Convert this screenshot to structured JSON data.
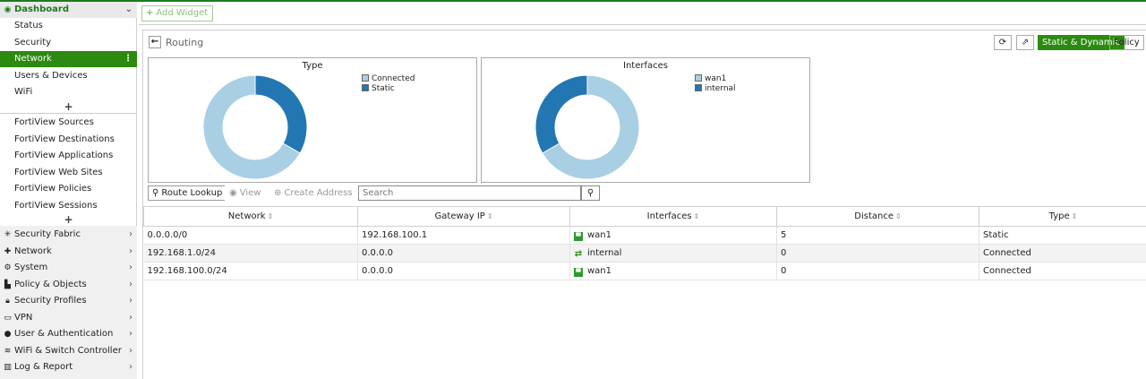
{
  "sidebar": {
    "dashboard": {
      "label": "Dashboard",
      "subitems": [
        "Status",
        "Security",
        "Network",
        "Users & Devices",
        "WiFi"
      ]
    },
    "fortiview": [
      "FortiView Sources",
      "FortiView Destinations",
      "FortiView Applications",
      "FortiView Web Sites",
      "FortiView Policies",
      "FortiView Sessions"
    ],
    "menu": [
      "Security Fabric",
      "Network",
      "System",
      "Policy & Objects",
      "Security Profiles",
      "VPN",
      "User & Authentication",
      "WiFi & Switch Controller",
      "Log & Report"
    ]
  },
  "toolbar": {
    "add_widget": "Add Widget"
  },
  "panel": {
    "title": "Routing",
    "segment_on": "Static & Dynamic",
    "segment_off": "Policy"
  },
  "charts": {
    "type": {
      "title": "Type",
      "legend": [
        "Connected",
        "Static"
      ]
    },
    "interfaces": {
      "title": "Interfaces",
      "legend": [
        "wan1",
        "internal"
      ]
    }
  },
  "chart_data": [
    {
      "type": "pie",
      "title": "Type",
      "categories": [
        "Connected",
        "Static"
      ],
      "values": [
        2,
        1
      ],
      "colors": [
        "#a8cfe3",
        "#2277b3"
      ],
      "donut": true
    },
    {
      "type": "pie",
      "title": "Interfaces",
      "categories": [
        "wan1",
        "internal"
      ],
      "values": [
        2,
        1
      ],
      "colors": [
        "#a8cfe3",
        "#2277b3"
      ],
      "donut": true
    }
  ],
  "actions": {
    "route_lookup": "Route Lookup",
    "view": "View",
    "create_address": "Create Address",
    "search_placeholder": "Search"
  },
  "table": {
    "headers": [
      "Network",
      "Gateway IP",
      "Interfaces",
      "Distance",
      "Type"
    ],
    "rows": [
      {
        "network": "0.0.0.0/0",
        "gateway": "192.168.100.1",
        "interface": "wan1",
        "distance": "5",
        "type": "Static"
      },
      {
        "network": "192.168.1.0/24",
        "gateway": "0.0.0.0",
        "interface": "internal",
        "distance": "0",
        "type": "Connected"
      },
      {
        "network": "192.168.100.0/24",
        "gateway": "0.0.0.0",
        "interface": "wan1",
        "distance": "0",
        "type": "Connected"
      }
    ]
  },
  "colors": {
    "accent": "#2b8a0f",
    "chart_light": "#a8cfe3",
    "chart_dark": "#2277b3"
  }
}
